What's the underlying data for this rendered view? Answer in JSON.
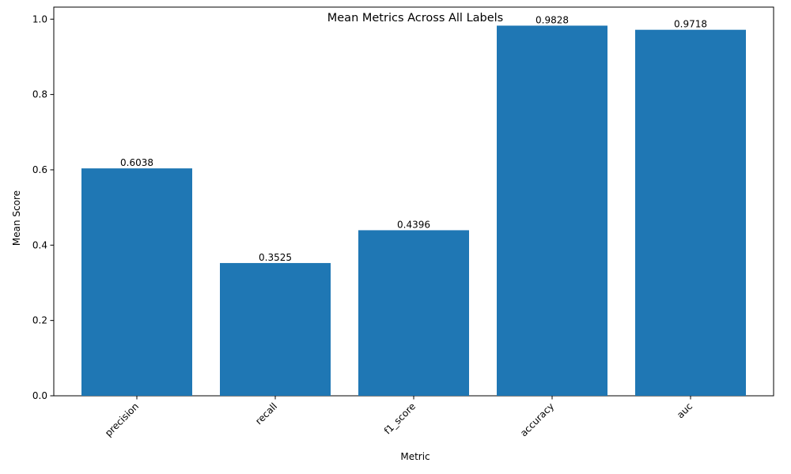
{
  "chart_data": {
    "type": "bar",
    "title": "Mean Metrics Across All Labels",
    "xlabel": "Metric",
    "ylabel": "Mean Score",
    "categories": [
      "precision",
      "recall",
      "f1_score",
      "accuracy",
      "auc"
    ],
    "values": [
      0.6038,
      0.3525,
      0.4396,
      0.9828,
      0.9718
    ],
    "data_labels": [
      "0.6038",
      "0.3525",
      "0.4396",
      "0.9828",
      "0.9718"
    ],
    "ylim": [
      0,
      1.032
    ],
    "yticks": [
      0.0,
      0.2,
      0.4,
      0.6,
      0.8,
      1.0
    ],
    "ytick_labels": [
      "0.0",
      "0.2",
      "0.4",
      "0.6",
      "0.8",
      "1.0"
    ],
    "xtick_rotation": 45,
    "grid": false,
    "bar_color": "#1f77b4"
  }
}
